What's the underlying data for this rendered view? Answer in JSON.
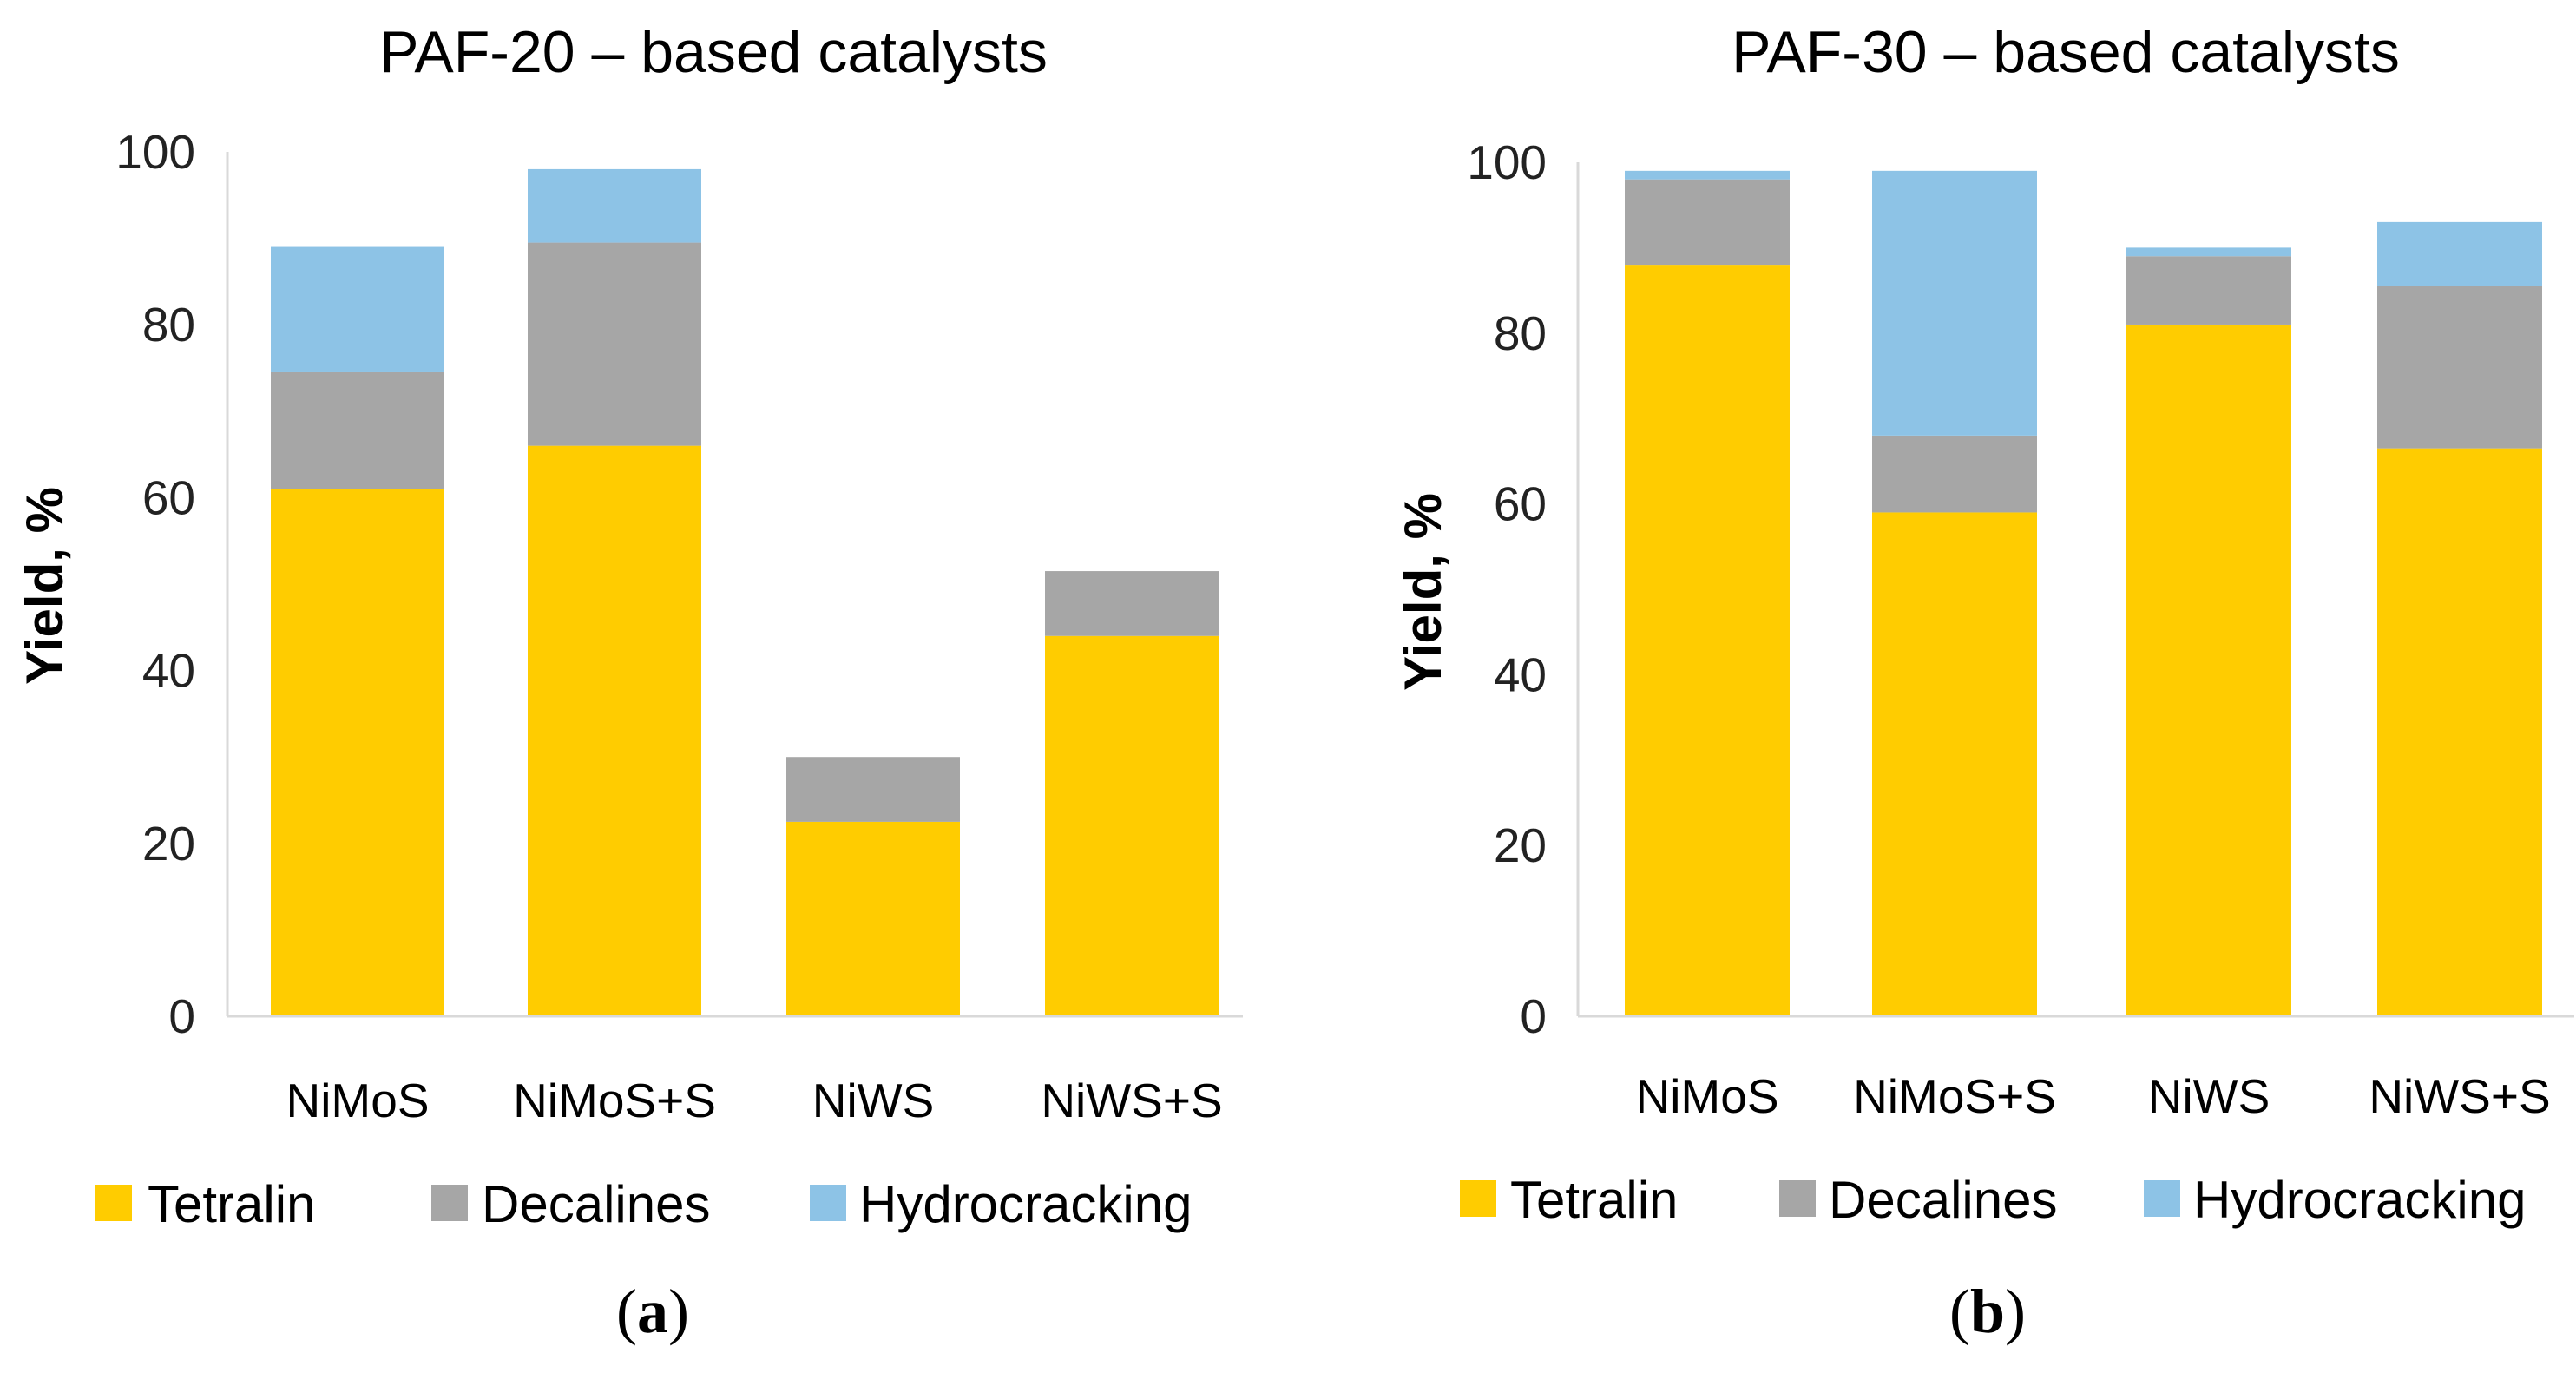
{
  "colors": {
    "tetralin": "#ffcc00",
    "decalines": "#a6a6a6",
    "hydrocracking": "#8dc3e6",
    "axis": "#d9d9d9"
  },
  "legend": [
    "Tetralin",
    "Decalines",
    "Hydrocracking"
  ],
  "chart_data": [
    {
      "type": "bar",
      "stacked": true,
      "title": "PAF-20 – based catalysts",
      "ylabel": "Yield, %",
      "xlabel": "",
      "ylim": [
        0,
        100
      ],
      "yticks": [
        0,
        20,
        40,
        60,
        80,
        100
      ],
      "categories": [
        "NiMoS",
        "NiMoS+S",
        "NiWS",
        "NiWS+S"
      ],
      "series": [
        {
          "name": "Tetralin",
          "values": [
            61,
            66,
            22.5,
            44
          ]
        },
        {
          "name": "Decalines",
          "values": [
            13.5,
            23.5,
            7.5,
            7.5
          ]
        },
        {
          "name": "Hydrocracking",
          "values": [
            14.5,
            8.5,
            0,
            0
          ]
        }
      ],
      "legend_position": "bottom",
      "panel_label": {
        "open": "(",
        "letter": "a",
        "close": ")"
      }
    },
    {
      "type": "bar",
      "stacked": true,
      "title": "PAF-30 – based catalysts",
      "ylabel": "Yield, %",
      "xlabel": "",
      "ylim": [
        0,
        100
      ],
      "yticks": [
        0,
        20,
        40,
        60,
        80,
        100
      ],
      "categories": [
        "NiMoS",
        "NiMoS+S",
        "NiWS",
        "NiWS+S"
      ],
      "series": [
        {
          "name": "Tetralin",
          "values": [
            88,
            59,
            81,
            66.5
          ]
        },
        {
          "name": "Decalines",
          "values": [
            10,
            9,
            8,
            19
          ]
        },
        {
          "name": "Hydrocracking",
          "values": [
            1,
            31,
            1,
            7.5
          ]
        }
      ],
      "legend_position": "bottom",
      "panel_label": {
        "open": "(",
        "letter": "b",
        "close": ")"
      }
    }
  ]
}
